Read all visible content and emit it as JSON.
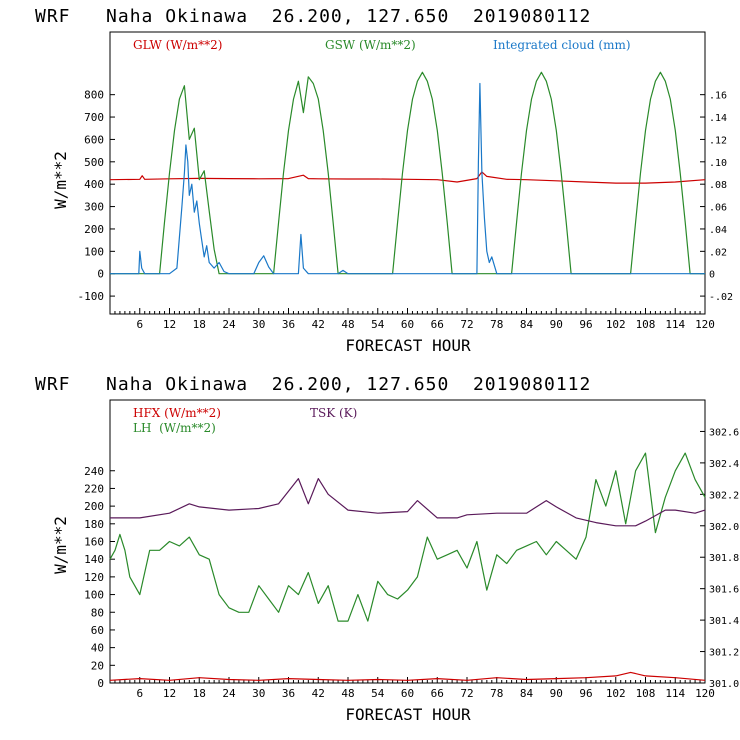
{
  "chart_data": [
    {
      "type": "line",
      "title": "WRF   Naha Okinawa  26.200, 127.650  2019080112",
      "xlabel": "FORECAST HOUR",
      "ylabel": "W/m**2",
      "xlim": [
        0,
        120
      ],
      "ylim": [
        -180,
        1080
      ],
      "x_ticks": [
        6,
        12,
        18,
        24,
        30,
        36,
        42,
        48,
        54,
        60,
        66,
        72,
        78,
        84,
        90,
        96,
        102,
        108,
        114,
        120
      ],
      "y_ticks": [
        -100,
        0,
        100,
        200,
        300,
        400,
        500,
        600,
        700,
        800
      ],
      "y2lim": [
        -0.036,
        0.216
      ],
      "y2_ticks": [
        -0.02,
        0,
        0.02,
        0.04,
        0.06,
        0.08,
        0.1,
        0.12,
        0.14,
        0.16
      ],
      "y2_tick_labels": [
        "-.02",
        "0",
        ".02",
        ".04",
        ".06",
        ".08",
        ".10",
        ".12",
        ".14",
        ".16"
      ],
      "series": [
        {
          "name": "GLW (W/m**2)",
          "color": "#cc0000",
          "axis": "left",
          "x": [
            0,
            6,
            6.5,
            7,
            12,
            18,
            24,
            30,
            36,
            39,
            40,
            42,
            48,
            54,
            60,
            66,
            70,
            74,
            75,
            76,
            80,
            84,
            90,
            96,
            102,
            108,
            114,
            120
          ],
          "y": [
            420,
            422,
            438,
            422,
            424,
            426,
            425,
            424,
            425,
            440,
            425,
            424,
            423,
            423,
            422,
            420,
            410,
            425,
            455,
            435,
            422,
            420,
            415,
            410,
            405,
            405,
            410,
            420
          ]
        },
        {
          "name": "GSW (W/m**2)",
          "color": "#2a8a2a",
          "axis": "left",
          "x": [
            0,
            10,
            11,
            12,
            13,
            14,
            15,
            16,
            17,
            18,
            19,
            20,
            21,
            22,
            33,
            34,
            35,
            36,
            37,
            38,
            39,
            40,
            41,
            42,
            43,
            44,
            45,
            46,
            57,
            58,
            59,
            60,
            61,
            62,
            63,
            64,
            65,
            66,
            67,
            68,
            69,
            70,
            81,
            82,
            83,
            84,
            85,
            86,
            87,
            88,
            89,
            90,
            91,
            92,
            93,
            94,
            105,
            106,
            107,
            108,
            109,
            110,
            111,
            112,
            113,
            114,
            115,
            116,
            117,
            118,
            120
          ],
          "y": [
            0,
            0,
            230,
            450,
            640,
            780,
            840,
            600,
            650,
            420,
            460,
            280,
            110,
            0,
            0,
            230,
            450,
            640,
            780,
            860,
            720,
            880,
            850,
            780,
            640,
            450,
            230,
            0,
            0,
            230,
            450,
            640,
            780,
            860,
            900,
            860,
            780,
            640,
            450,
            230,
            0,
            0,
            0,
            230,
            450,
            640,
            780,
            860,
            900,
            860,
            780,
            640,
            450,
            230,
            0,
            0,
            0,
            230,
            450,
            640,
            780,
            860,
            900,
            860,
            780,
            640,
            450,
            230,
            0,
            0,
            0
          ]
        },
        {
          "name": "Integrated cloud (mm)",
          "color": "#1a78c8",
          "axis": "right",
          "x": [
            0,
            5.8,
            6,
            6.4,
            7,
            12,
            13.5,
            14.5,
            15,
            15.3,
            15.7,
            16,
            16.5,
            17,
            17.5,
            18,
            18.5,
            19,
            19.5,
            20,
            21,
            22,
            23,
            24,
            29,
            30,
            31,
            32,
            33,
            38,
            38.5,
            39,
            40,
            46,
            47,
            48,
            74,
            74.3,
            74.6,
            75,
            75.5,
            76,
            76.5,
            77,
            78,
            120
          ],
          "y": [
            0,
            0,
            0.02,
            0.005,
            0,
            0,
            0.005,
            0.06,
            0.09,
            0.115,
            0.1,
            0.07,
            0.08,
            0.055,
            0.065,
            0.045,
            0.03,
            0.015,
            0.025,
            0.01,
            0.005,
            0.01,
            0.002,
            0,
            0,
            0.01,
            0.016,
            0.006,
            0,
            0,
            0.035,
            0.005,
            0,
            0,
            0.003,
            0,
            0,
            0.1,
            0.17,
            0.09,
            0.05,
            0.02,
            0.01,
            0.015,
            0,
            0
          ]
        }
      ],
      "legend": [
        "GLW (W/m**2)",
        "GSW (W/m**2)",
        "Integrated cloud (mm)"
      ]
    },
    {
      "type": "line",
      "title": "WRF   Naha Okinawa  26.200, 127.650  2019080112",
      "xlabel": "FORECAST HOUR",
      "ylabel": "W/m**2",
      "xlim": [
        0,
        120
      ],
      "ylim": [
        0,
        320
      ],
      "x_ticks": [
        6,
        12,
        18,
        24,
        30,
        36,
        42,
        48,
        54,
        60,
        66,
        72,
        78,
        84,
        90,
        96,
        102,
        108,
        114,
        120
      ],
      "y_ticks": [
        0,
        20,
        40,
        60,
        80,
        100,
        120,
        140,
        160,
        180,
        200,
        220,
        240
      ],
      "y2lim": [
        301.0,
        302.8
      ],
      "y2_ticks": [
        301.0,
        301.2,
        301.4,
        301.6,
        301.8,
        302.0,
        302.2,
        302.4,
        302.6
      ],
      "y2_tick_labels": [
        "301.0",
        "301.2",
        "301.4",
        "301.6",
        "301.8",
        "302.0",
        "302.2",
        "302.4",
        "302.6"
      ],
      "series": [
        {
          "name": "HFX (W/m**2)",
          "color": "#cc0000",
          "axis": "left",
          "x": [
            0,
            6,
            12,
            18,
            24,
            30,
            36,
            42,
            48,
            54,
            60,
            66,
            72,
            78,
            84,
            90,
            96,
            102,
            105,
            108,
            114,
            120
          ],
          "y": [
            3,
            5,
            3,
            6,
            4,
            3,
            5,
            4,
            3,
            4,
            3,
            5,
            3,
            6,
            4,
            5,
            6,
            8,
            12,
            8,
            6,
            3
          ]
        },
        {
          "name": "LH (W/m**2)",
          "color": "#2a8a2a",
          "axis": "left",
          "x": [
            0,
            1,
            2,
            3,
            4,
            6,
            8,
            10,
            12,
            14,
            16,
            18,
            20,
            22,
            24,
            26,
            28,
            30,
            32,
            34,
            36,
            38,
            40,
            42,
            44,
            46,
            48,
            50,
            52,
            54,
            56,
            58,
            60,
            62,
            64,
            66,
            68,
            70,
            72,
            74,
            76,
            78,
            80,
            82,
            84,
            86,
            88,
            90,
            92,
            94,
            96,
            98,
            100,
            102,
            104,
            106,
            108,
            110,
            112,
            114,
            116,
            118,
            120
          ],
          "y": [
            140,
            150,
            168,
            150,
            120,
            100,
            150,
            150,
            160,
            155,
            165,
            145,
            140,
            100,
            85,
            80,
            80,
            110,
            95,
            80,
            110,
            100,
            125,
            90,
            110,
            70,
            70,
            100,
            70,
            115,
            100,
            95,
            105,
            120,
            165,
            140,
            145,
            150,
            130,
            160,
            105,
            145,
            135,
            150,
            155,
            160,
            145,
            160,
            150,
            140,
            165,
            230,
            200,
            240,
            180,
            240,
            260,
            170,
            210,
            240,
            260,
            230,
            210
          ]
        },
        {
          "name": "TSK (K)",
          "color": "#5a1a5a",
          "axis": "right",
          "x": [
            0,
            6,
            12,
            16,
            18,
            24,
            30,
            34,
            36,
            38,
            40,
            42,
            44,
            48,
            54,
            60,
            62,
            66,
            70,
            72,
            78,
            84,
            88,
            90,
            94,
            98,
            102,
            106,
            108,
            112,
            114,
            118,
            120
          ],
          "y": [
            302.05,
            302.05,
            302.08,
            302.14,
            302.12,
            302.1,
            302.11,
            302.14,
            302.22,
            302.3,
            302.14,
            302.3,
            302.2,
            302.1,
            302.08,
            302.09,
            302.16,
            302.05,
            302.05,
            302.07,
            302.08,
            302.08,
            302.16,
            302.12,
            302.05,
            302.02,
            302.0,
            302.0,
            302.03,
            302.1,
            302.1,
            302.08,
            302.1
          ]
        }
      ],
      "legend": [
        "HFX (W/m**2)",
        "LH  (W/m**2)",
        "TSK (K)"
      ]
    }
  ]
}
